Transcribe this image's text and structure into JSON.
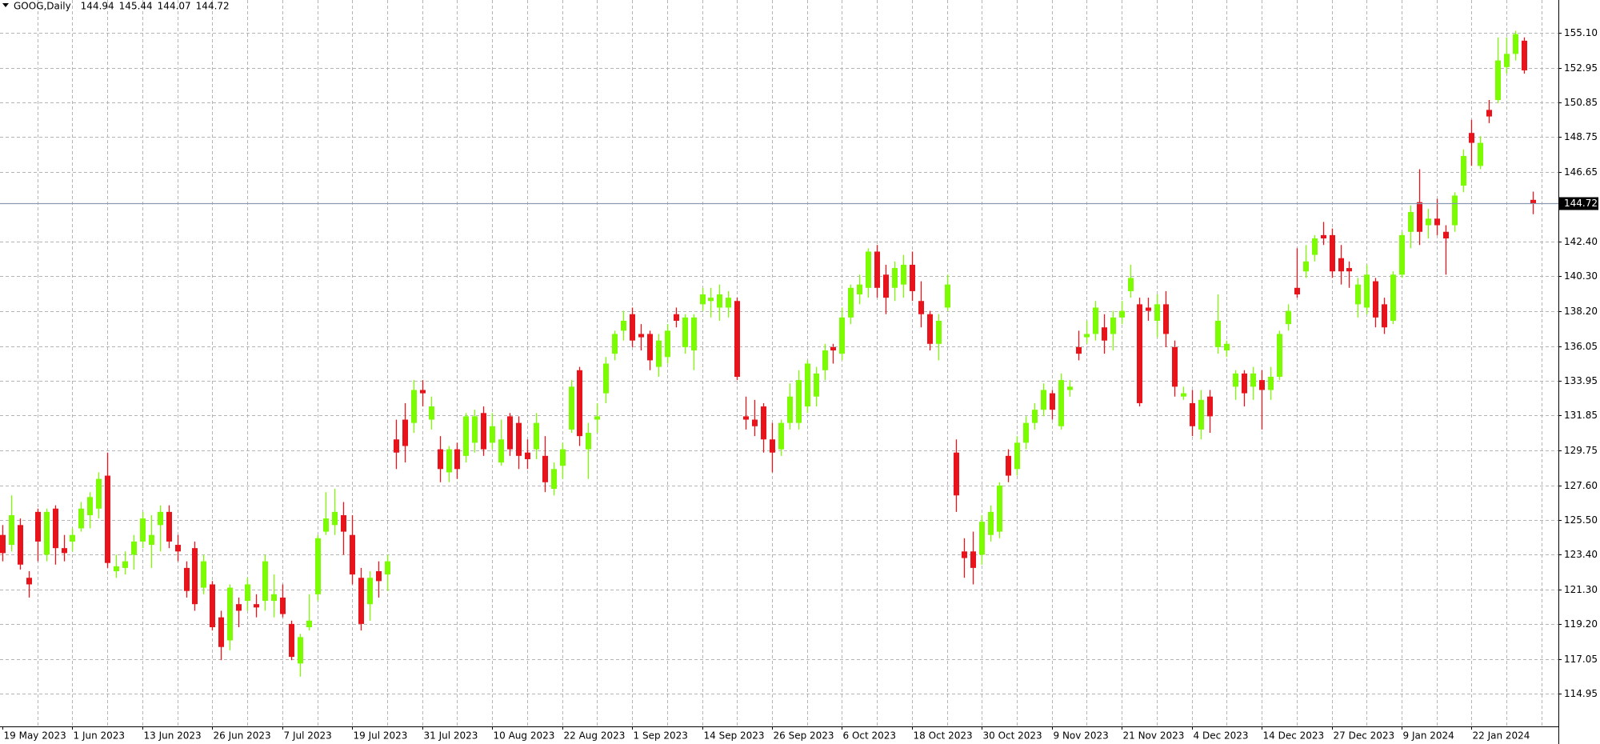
{
  "chart_data": {
    "type": "candlestick",
    "title": "GOOG,Daily",
    "header_values": [
      144.94,
      145.44,
      144.07,
      144.72
    ],
    "current_price": 144.72,
    "up_color": "#7cfc00",
    "down_color": "#e8131b",
    "grid": true,
    "ylim": [
      112.98,
      157.07
    ],
    "yticks": [
      114.95,
      117.05,
      {
        "value": 119.2,
        "label": "119.20"
      },
      {
        "value": 121.3,
        "label": "121.30"
      },
      {
        "value": 123.4,
        "label": "123.40"
      },
      {
        "value": 125.5,
        "label": "125.50"
      },
      {
        "value": 127.6,
        "label": "127.60"
      },
      129.75,
      131.85,
      133.95,
      136.05,
      {
        "value": 138.2,
        "label": "138.20"
      },
      {
        "value": 140.3,
        "label": "140.30"
      },
      {
        "value": 142.4,
        "label": "142.40"
      },
      146.65,
      148.75,
      150.85,
      152.95,
      {
        "value": 155.1,
        "label": "155.10"
      }
    ],
    "categories": [
      "19 May 2023",
      null,
      null,
      null,
      null,
      null,
      null,
      null,
      "1 Jun 2023",
      null,
      null,
      null,
      null,
      null,
      null,
      null,
      "13 Jun 2023",
      null,
      null,
      null,
      null,
      null,
      null,
      null,
      "26 Jun 2023",
      null,
      null,
      null,
      null,
      null,
      null,
      null,
      "7 Jul 2023",
      null,
      null,
      null,
      null,
      null,
      null,
      null,
      "19 Jul 2023",
      null,
      null,
      null,
      null,
      null,
      null,
      null,
      "31 Jul 2023",
      null,
      null,
      null,
      null,
      null,
      null,
      null,
      "10 Aug 2023",
      null,
      null,
      null,
      null,
      null,
      null,
      null,
      "22 Aug 2023",
      null,
      null,
      null,
      null,
      null,
      null,
      null,
      "1 Sep 2023",
      null,
      null,
      null,
      null,
      null,
      null,
      null,
      "14 Sep 2023",
      null,
      null,
      null,
      null,
      null,
      null,
      null,
      "26 Sep 2023",
      null,
      null,
      null,
      null,
      null,
      null,
      null,
      "6 Oct 2023",
      null,
      null,
      null,
      null,
      null,
      null,
      null,
      "18 Oct 2023",
      null,
      null,
      null,
      null,
      null,
      null,
      null,
      "30 Oct 2023",
      null,
      null,
      null,
      null,
      null,
      null,
      null,
      "9 Nov 2023",
      null,
      null,
      null,
      null,
      null,
      null,
      null,
      "21 Nov 2023",
      null,
      null,
      null,
      null,
      null,
      null,
      null,
      "4 Dec 2023",
      null,
      null,
      null,
      null,
      null,
      null,
      null,
      "14 Dec 2023",
      null,
      null,
      null,
      null,
      null,
      null,
      null,
      "27 Dec 2023",
      null,
      null,
      null,
      null,
      null,
      null,
      null,
      "9 Jan 2024",
      null,
      null,
      null,
      null,
      null,
      null,
      null,
      "22 Jan 2024",
      null,
      null,
      null,
      null,
      null,
      null,
      null
    ],
    "open": [
      124.6,
      124.0,
      125.2,
      122.0,
      126.0,
      123.4,
      126.2,
      123.8,
      124.2,
      125.0,
      125.8,
      126.2,
      128.2,
      122.4,
      122.6,
      123.4,
      124.2,
      124.0,
      125.2,
      126.0,
      124.0,
      122.6,
      123.8,
      121.4,
      121.6,
      119.6,
      118.2,
      120.4,
      120.6,
      120.4,
      120.6,
      120.6,
      120.8,
      119.2,
      116.8,
      119.0,
      121.0,
      124.8,
      125.2,
      125.8,
      124.6,
      122.0,
      120.4,
      122.4,
      122.2,
      130.4,
      131.6,
      131.4,
      133.4,
      131.6,
      129.8,
      128.4,
      129.8,
      129.4,
      130.2,
      132.0,
      130.2,
      129.0,
      131.8,
      131.4,
      129.6,
      129.8,
      129.4,
      127.4,
      128.8,
      131.0,
      134.6,
      129.8,
      131.6,
      133.2,
      135.6,
      137.0,
      138.0,
      136.8,
      136.8,
      134.8,
      135.4,
      138.0,
      136.0,
      135.8,
      138.6,
      138.8,
      138.4,
      138.4,
      138.8,
      131.8,
      131.6,
      132.4,
      130.4,
      129.8,
      131.4,
      131.4,
      132.4,
      133.0,
      134.6,
      136.0,
      135.6,
      137.8,
      139.2,
      139.6,
      141.8,
      140.4,
      139.6,
      139.8,
      141.0,
      138.8,
      138.0,
      136.2,
      138.4,
      129.6,
      123.6,
      123.6,
      123.4,
      124.6,
      124.8,
      129.4,
      128.6,
      130.2,
      131.4,
      132.2,
      133.2,
      131.2,
      133.4,
      136.0,
      136.6,
      136.8,
      137.2,
      136.8,
      137.8,
      139.4,
      138.6,
      138.4,
      137.6,
      138.6,
      136.0,
      133.0,
      132.6,
      131.0,
      133.0,
      136.0,
      135.8,
      133.6,
      134.4,
      133.6,
      134.0,
      133.4,
      134.2,
      137.4,
      139.6,
      140.6,
      141.6,
      142.8,
      142.8,
      141.4,
      140.8,
      138.6,
      138.4,
      140.0,
      138.6,
      137.6,
      140.4,
      143.0,
      144.8,
      143.4,
      143.8,
      143.0,
      143.4,
      145.8,
      149.0,
      147.0,
      150.4,
      151.0,
      153.0,
      153.8,
      154.6,
      144.94
    ],
    "high": [
      125.2,
      127.0,
      125.6,
      122.4,
      126.2,
      126.2,
      126.4,
      124.6,
      125.0,
      126.6,
      127.2,
      128.4,
      129.6,
      123.4,
      123.6,
      124.6,
      126.0,
      125.8,
      126.4,
      126.4,
      124.6,
      123.0,
      124.2,
      123.4,
      121.8,
      120.0,
      121.6,
      120.8,
      122.0,
      121.0,
      123.4,
      122.2,
      121.6,
      119.4,
      118.6,
      121.0,
      124.6,
      127.2,
      127.4,
      126.6,
      125.8,
      122.6,
      122.4,
      123.0,
      123.4,
      131.6,
      132.6,
      134.0,
      134.0,
      133.0,
      130.6,
      130.0,
      130.2,
      132.0,
      132.2,
      132.4,
      132.0,
      131.6,
      132.0,
      131.8,
      130.4,
      132.0,
      130.6,
      129.0,
      130.2,
      134.0,
      134.8,
      131.4,
      132.6,
      135.4,
      137.0,
      138.2,
      138.4,
      137.4,
      137.0,
      136.8,
      137.4,
      138.4,
      138.0,
      138.0,
      139.6,
      139.6,
      139.8,
      139.4,
      139.0,
      133.0,
      132.8,
      132.6,
      131.4,
      131.6,
      133.8,
      134.6,
      135.2,
      134.8,
      136.2,
      136.2,
      138.4,
      139.8,
      140.4,
      142.0,
      142.2,
      141.0,
      141.2,
      141.6,
      141.8,
      140.0,
      138.2,
      138.0,
      140.4,
      130.4,
      124.4,
      124.8,
      125.8,
      126.4,
      127.8,
      129.8,
      130.6,
      131.8,
      132.6,
      133.8,
      133.4,
      134.4,
      134.0,
      137.0,
      137.6,
      138.8,
      138.0,
      138.2,
      138.8,
      141.0,
      139.0,
      139.0,
      139.2,
      139.4,
      136.4,
      133.6,
      133.4,
      133.4,
      133.4,
      139.2,
      136.4,
      134.6,
      134.6,
      134.8,
      134.6,
      134.8,
      137.0,
      138.6,
      142.0,
      142.2,
      142.8,
      143.6,
      143.2,
      142.2,
      141.2,
      140.2,
      141.0,
      140.2,
      139.0,
      140.6,
      143.0,
      144.6,
      146.8,
      144.4,
      145.0,
      143.4,
      145.4,
      148.0,
      149.8,
      148.8,
      151.0,
      154.8,
      154.8,
      155.2,
      154.8,
      145.44
    ],
    "low": [
      123.0,
      123.6,
      122.5,
      120.8,
      123.0,
      123.0,
      122.8,
      123.0,
      123.6,
      124.8,
      125.0,
      125.6,
      122.6,
      122.0,
      122.2,
      122.5,
      123.8,
      122.6,
      123.6,
      123.8,
      123.0,
      120.8,
      120.0,
      121.0,
      118.8,
      117.0,
      117.6,
      119.0,
      120.0,
      119.6,
      120.0,
      119.6,
      119.6,
      117.0,
      116.0,
      118.8,
      120.6,
      124.6,
      124.6,
      123.4,
      121.6,
      118.8,
      119.4,
      120.8,
      121.2,
      128.6,
      129.0,
      130.8,
      132.4,
      131.0,
      127.8,
      127.8,
      128.0,
      129.0,
      129.6,
      129.4,
      129.8,
      128.8,
      129.4,
      128.6,
      128.6,
      129.2,
      127.2,
      127.0,
      128.0,
      130.8,
      130.0,
      128.0,
      130.8,
      132.6,
      135.2,
      136.4,
      136.0,
      135.8,
      134.6,
      134.2,
      135.0,
      137.2,
      135.6,
      134.6,
      138.2,
      137.8,
      137.6,
      137.8,
      134.0,
      131.0,
      130.6,
      129.6,
      128.4,
      129.4,
      131.0,
      131.0,
      132.0,
      132.4,
      134.0,
      135.0,
      135.2,
      137.4,
      138.6,
      139.0,
      139.0,
      138.0,
      138.8,
      139.0,
      138.8,
      137.2,
      135.8,
      135.2,
      138.2,
      126.0,
      122.0,
      121.6,
      122.8,
      124.2,
      124.4,
      127.8,
      128.2,
      129.8,
      131.0,
      131.8,
      131.6,
      131.0,
      133.0,
      135.2,
      136.2,
      136.4,
      135.6,
      135.8,
      137.4,
      139.0,
      132.4,
      137.6,
      136.6,
      136.0,
      133.0,
      132.8,
      130.6,
      130.4,
      130.8,
      135.6,
      135.4,
      132.8,
      132.4,
      132.8,
      131.0,
      132.8,
      134.0,
      137.0,
      139.0,
      140.2,
      141.2,
      142.2,
      140.2,
      139.8,
      139.6,
      137.8,
      138.0,
      137.2,
      136.8,
      137.4,
      140.2,
      142.0,
      142.2,
      142.6,
      142.8,
      140.4,
      143.0,
      145.4,
      147.0,
      146.8,
      149.6,
      150.8,
      152.6,
      153.4,
      152.6,
      144.07
    ],
    "close": [
      123.5,
      125.8,
      122.8,
      121.6,
      124.2,
      126.0,
      123.8,
      123.5,
      124.6,
      126.2,
      126.9,
      128.0,
      122.9,
      122.7,
      123.0,
      124.2,
      125.6,
      124.6,
      126.0,
      124.2,
      123.6,
      121.2,
      120.4,
      123.0,
      119.0,
      117.8,
      121.4,
      120.0,
      121.6,
      120.2,
      123.0,
      121.0,
      119.8,
      117.2,
      118.4,
      119.4,
      124.4,
      125.6,
      126.0,
      124.8,
      122.2,
      119.2,
      122.0,
      121.8,
      123.0,
      129.6,
      130.0,
      133.4,
      133.2,
      132.4,
      128.6,
      129.8,
      128.6,
      131.8,
      131.8,
      129.8,
      131.2,
      130.4,
      129.8,
      129.4,
      129.2,
      131.4,
      127.8,
      128.6,
      129.8,
      133.6,
      130.6,
      130.8,
      131.8,
      135.0,
      136.8,
      137.6,
      136.4,
      136.6,
      135.2,
      136.4,
      137.0,
      137.6,
      137.8,
      137.8,
      139.2,
      139.0,
      139.2,
      139.0,
      134.2,
      131.6,
      131.2,
      130.4,
      129.6,
      131.4,
      133.0,
      134.0,
      135.0,
      134.4,
      135.8,
      135.8,
      137.8,
      139.6,
      139.8,
      141.8,
      139.6,
      139.0,
      140.8,
      141.0,
      139.4,
      138.0,
      136.2,
      137.6,
      139.8,
      127.0,
      123.2,
      122.6,
      125.4,
      126.0,
      127.6,
      128.2,
      130.2,
      131.4,
      132.2,
      133.4,
      132.2,
      134.0,
      133.6,
      135.6,
      136.8,
      138.4,
      136.4,
      137.8,
      138.2,
      140.2,
      132.6,
      138.2,
      138.6,
      136.8,
      133.6,
      133.2,
      131.2,
      132.8,
      131.8,
      137.6,
      136.2,
      134.4,
      133.2,
      134.4,
      133.4,
      134.2,
      136.8,
      138.2,
      139.2,
      141.2,
      142.6,
      142.6,
      140.6,
      140.6,
      140.6,
      139.8,
      140.4,
      137.8,
      137.2,
      140.4,
      142.8,
      144.2,
      143.0,
      143.8,
      143.4,
      142.6,
      145.2,
      147.6,
      148.4,
      148.4,
      150.0,
      153.4,
      153.8,
      155.0,
      152.8,
      144.72
    ]
  }
}
